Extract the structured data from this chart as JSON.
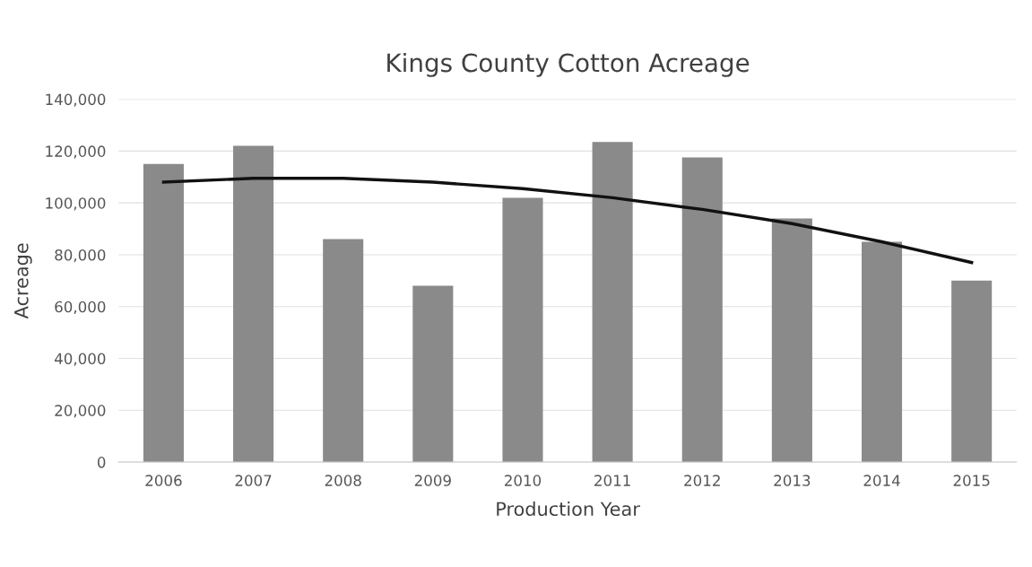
{
  "chart_data": {
    "type": "bar",
    "title": "Kings County Cotton Acreage",
    "xlabel": "Production Year",
    "ylabel": "Acreage",
    "categories": [
      "2006",
      "2007",
      "2008",
      "2009",
      "2010",
      "2011",
      "2012",
      "2013",
      "2014",
      "2015"
    ],
    "series": [
      {
        "color": "#8a8a8a",
        "values": [
          115000,
          122000,
          86000,
          68000,
          102000,
          123500,
          117500,
          94000,
          85000,
          70000
        ]
      },
      {
        "type": "line",
        "color": "#111111",
        "values": [
          108000,
          109500,
          109500,
          108000,
          105500,
          102000,
          97500,
          92000,
          85000,
          77000
        ]
      }
    ],
    "ylim": [
      0,
      140000
    ],
    "yticks": [
      {
        "value": 0,
        "label": "0"
      },
      {
        "value": 20000,
        "label": "20,000"
      },
      {
        "value": 40000,
        "label": "40,000"
      },
      {
        "value": 60000,
        "label": "60,000"
      },
      {
        "value": 80000,
        "label": "80,000"
      },
      {
        "value": 100000,
        "label": "100,000"
      },
      {
        "value": 120000,
        "label": "120,000"
      },
      {
        "value": 140000,
        "label": "140,000"
      }
    ],
    "grid": "y",
    "legend": false
  }
}
